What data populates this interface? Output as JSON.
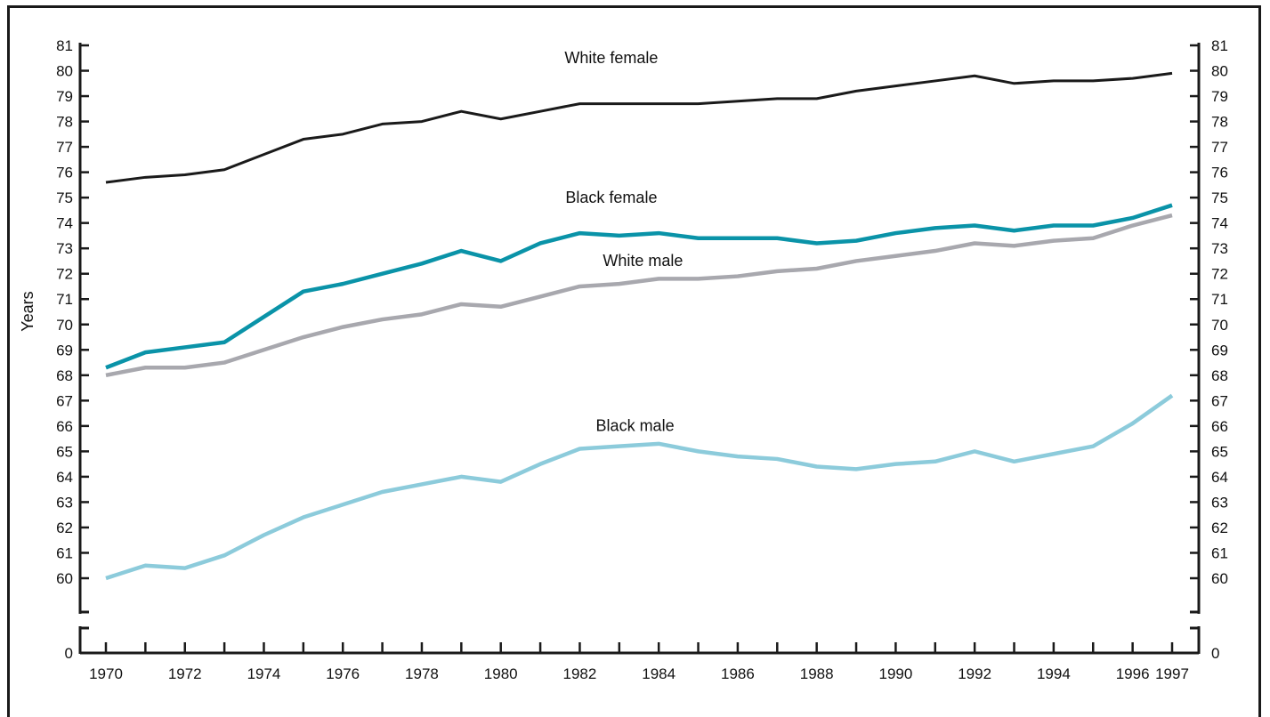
{
  "chart_data": {
    "type": "line",
    "ylabel": "Years",
    "xlabel": "",
    "title": "",
    "ylim": [
      60,
      81
    ],
    "broken_axis_zero_label": "0",
    "x_tick_labels": [
      "1970",
      "1972",
      "1974",
      "1976",
      "1978",
      "1980",
      "1982",
      "1984",
      "1986",
      "1988",
      "1990",
      "1992",
      "1994",
      "1996",
      "1997"
    ],
    "y_tick_labels": [
      "60",
      "61",
      "62",
      "63",
      "64",
      "65",
      "66",
      "67",
      "68",
      "69",
      "70",
      "71",
      "72",
      "73",
      "74",
      "75",
      "76",
      "77",
      "78",
      "79",
      "80",
      "81"
    ],
    "x": [
      1970,
      1971,
      1972,
      1973,
      1974,
      1975,
      1976,
      1977,
      1978,
      1979,
      1980,
      1981,
      1982,
      1983,
      1984,
      1985,
      1986,
      1987,
      1988,
      1989,
      1990,
      1991,
      1992,
      1993,
      1994,
      1995,
      1996,
      1997
    ],
    "series": [
      {
        "name": "White female",
        "color": "#1a1a1a",
        "values": [
          75.6,
          75.8,
          75.9,
          76.1,
          76.7,
          77.3,
          77.5,
          77.9,
          78.0,
          78.4,
          78.1,
          78.4,
          78.7,
          78.7,
          78.7,
          78.7,
          78.8,
          78.9,
          78.9,
          79.2,
          79.4,
          79.6,
          79.8,
          79.5,
          79.6,
          79.6,
          79.7,
          79.9
        ]
      },
      {
        "name": "Black female",
        "color": "#0a93a8",
        "values": [
          68.3,
          68.9,
          69.1,
          69.3,
          70.3,
          71.3,
          71.6,
          72.0,
          72.4,
          72.9,
          72.5,
          73.2,
          73.6,
          73.5,
          73.6,
          73.4,
          73.4,
          73.4,
          73.2,
          73.3,
          73.6,
          73.8,
          73.9,
          73.7,
          73.9,
          73.9,
          74.2,
          74.7
        ]
      },
      {
        "name": "White male",
        "color": "#a8a8ae",
        "values": [
          68.0,
          68.3,
          68.3,
          68.5,
          69.0,
          69.5,
          69.9,
          70.2,
          70.4,
          70.8,
          70.7,
          71.1,
          71.5,
          71.6,
          71.8,
          71.8,
          71.9,
          72.1,
          72.2,
          72.5,
          72.7,
          72.9,
          73.2,
          73.1,
          73.3,
          73.4,
          73.9,
          74.3
        ]
      },
      {
        "name": "Black male",
        "color": "#8ccbdb",
        "values": [
          60.0,
          60.5,
          60.4,
          60.9,
          61.7,
          62.4,
          62.9,
          63.4,
          63.7,
          64.0,
          63.8,
          64.5,
          65.1,
          65.2,
          65.3,
          65.0,
          64.8,
          64.7,
          64.4,
          64.3,
          64.5,
          64.6,
          65.0,
          64.6,
          64.9,
          65.2,
          66.1,
          67.2
        ]
      }
    ],
    "grid": false,
    "legend": "inline labels"
  }
}
